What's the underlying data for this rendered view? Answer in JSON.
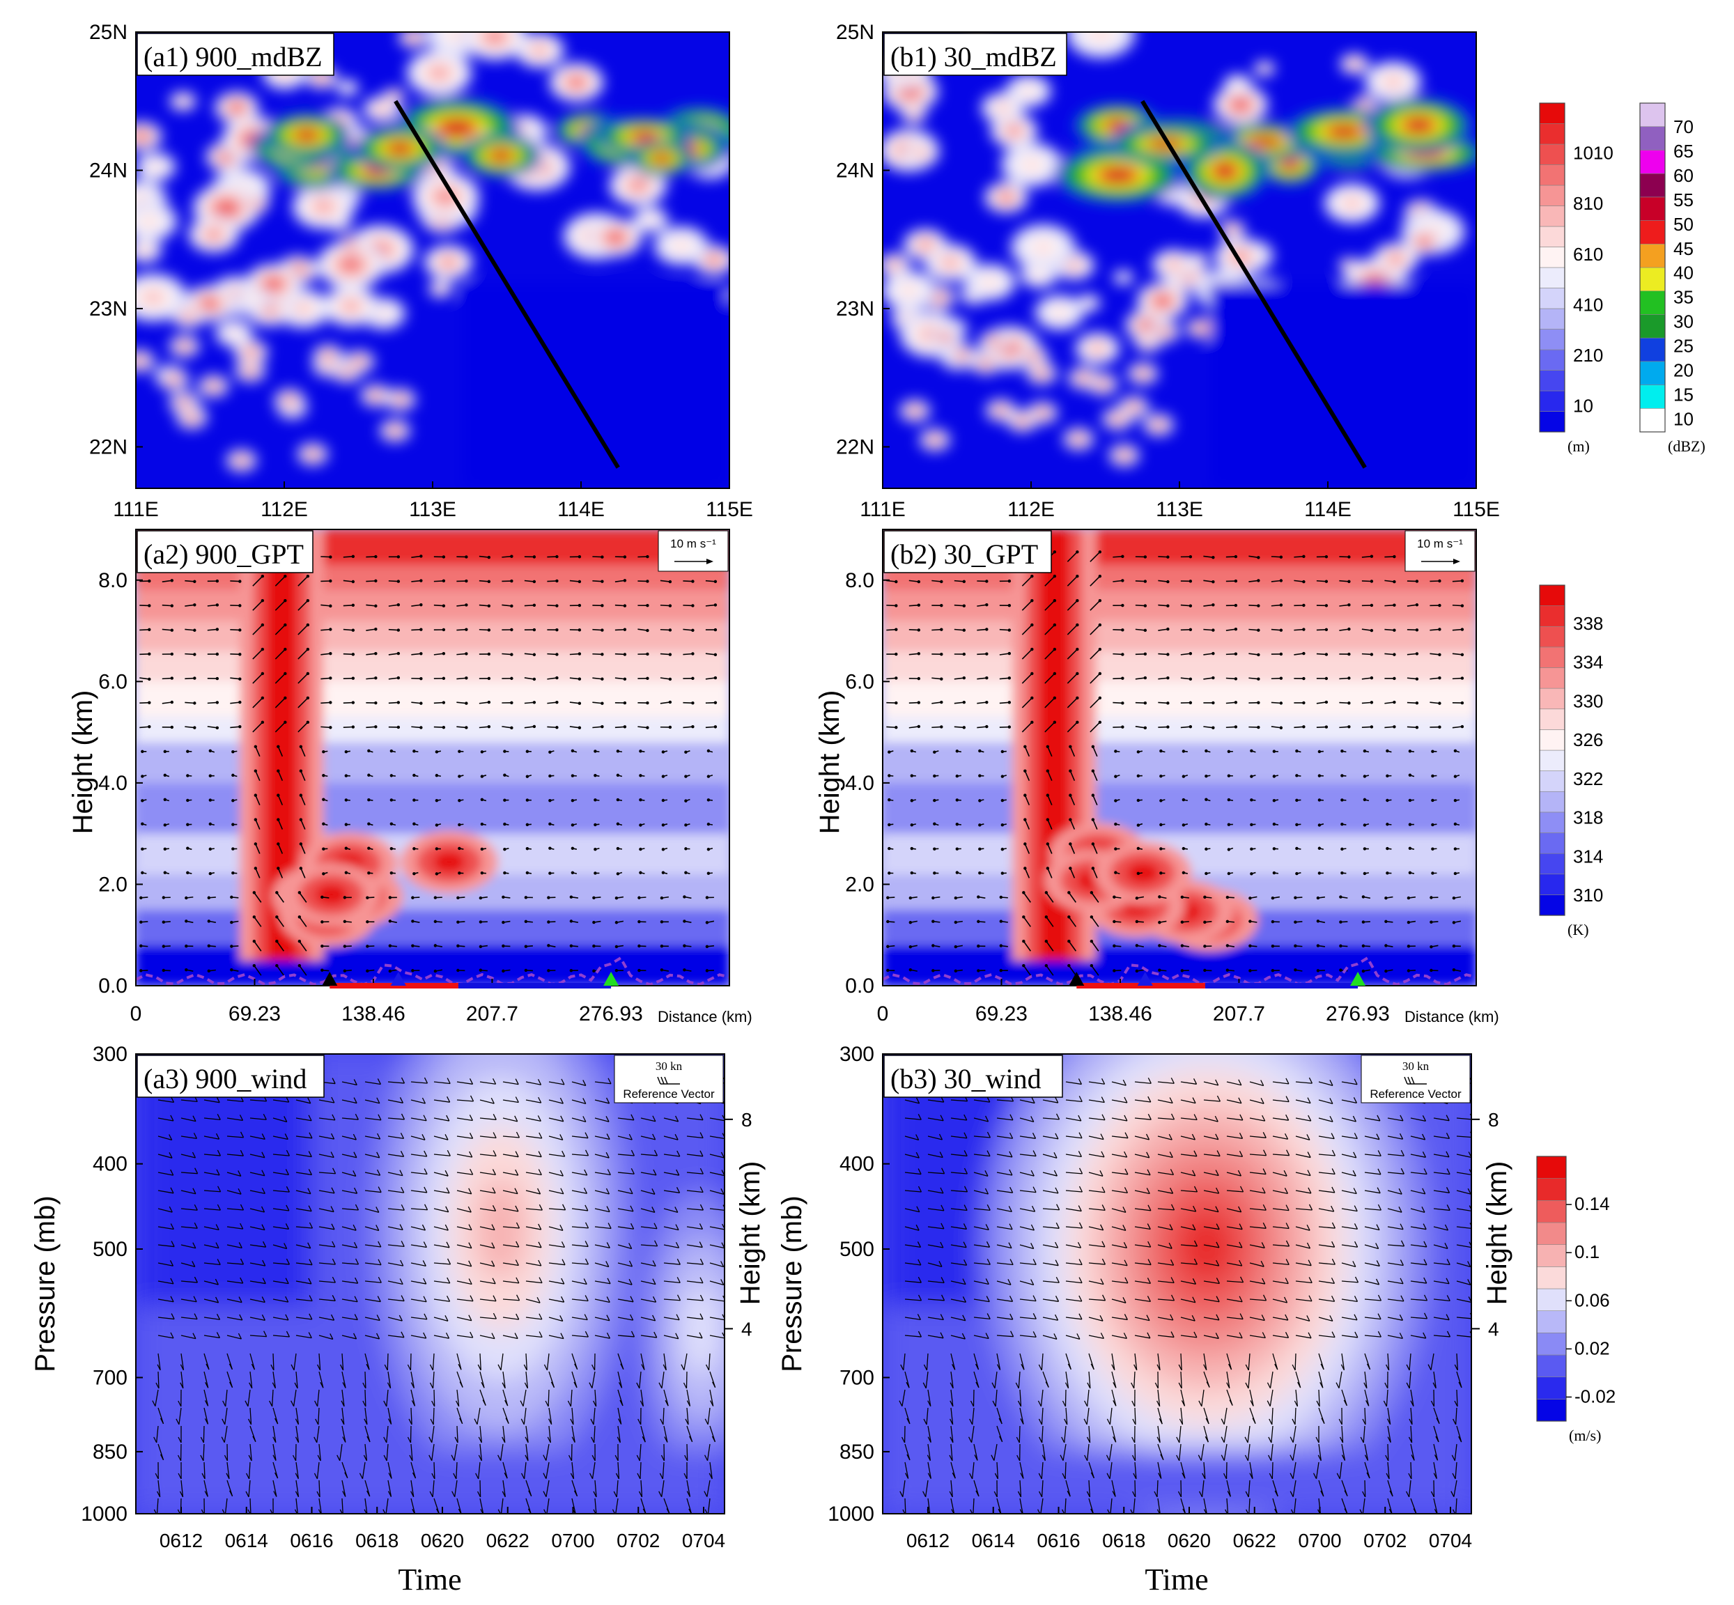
{
  "colors": {
    "terrain": [
      "#0505e6",
      "#2828ee",
      "#4646f0",
      "#6a6af2",
      "#8e8ef5",
      "#b4b4f7",
      "#d4d4fa",
      "#ececfc",
      "#fff3f3",
      "#fcd9d9",
      "#f9b7b7",
      "#f69595",
      "#f27373",
      "#ee5050",
      "#ea2e2e",
      "#e60a0a"
    ],
    "dbz": [
      "#ffffff",
      "#00eeee",
      "#00aaee",
      "#1040e0",
      "#1a9a2a",
      "#22c022",
      "#ecec22",
      "#f4a020",
      "#ee1c1c",
      "#c80028",
      "#8c0050",
      "#ee00ee",
      "#9060c0",
      "#ddc4ee"
    ],
    "theta": [
      "#0505e6",
      "#2828ee",
      "#4646f0",
      "#6a6af2",
      "#8e8ef5",
      "#b4b4f7",
      "#d4d4fa",
      "#ececfc",
      "#fff3f3",
      "#fcd9d9",
      "#f9b7b7",
      "#f69595",
      "#f27373",
      "#ee5050",
      "#ea2e2e",
      "#e60a0a"
    ],
    "w": [
      "#0505e6",
      "#2a2aee",
      "#5a5af2",
      "#8a8af5",
      "#b8b8f8",
      "#e0e0fb",
      "#fbdada",
      "#f7b2b2",
      "#f28a8a",
      "#ee5c5c",
      "#e82a2a",
      "#e60a0a"
    ],
    "crosssection_line": "#000000",
    "dashed_line": "#9040d0",
    "marker_black": "#000000",
    "marker_blue": "#1a1ae6",
    "marker_green": "#22dd22",
    "bar_red": "#ee1111",
    "bar_blue": "#1111dd"
  },
  "colorbars": {
    "terrain": {
      "labels": [
        "1010",
        "810",
        "610",
        "410",
        "210",
        "10"
      ],
      "unit": "(m)"
    },
    "dbz": {
      "labels": [
        "70",
        "65",
        "60",
        "55",
        "50",
        "45",
        "40",
        "35",
        "30",
        "25",
        "20",
        "15",
        "10"
      ],
      "unit": "(dBZ)"
    },
    "theta": {
      "labels": [
        "338",
        "334",
        "330",
        "326",
        "322",
        "318",
        "314",
        "310"
      ],
      "unit": "(K)"
    },
    "w": {
      "labels": [
        "0.14",
        "0.1",
        "0.06",
        "0.02",
        "-0.02"
      ],
      "unit": "(m/s)"
    }
  },
  "chart_data": [
    {
      "type": "heatmap",
      "title": "(a1) 900_mdBZ",
      "x_ticks": [
        "111E",
        "112E",
        "113E",
        "114E",
        "115E"
      ],
      "y_ticks": [
        "25N",
        "24N",
        "23N",
        "22N"
      ],
      "xlim": [
        111,
        115
      ],
      "ylim": [
        21.7,
        25
      ],
      "cross_section_line": {
        "start": [
          112.75,
          24.5
        ],
        "end": [
          114.25,
          21.85
        ]
      },
      "variable": "radar reflectivity over terrain height"
    },
    {
      "type": "heatmap",
      "title": "(b1) 30_mdBZ",
      "x_ticks": [
        "111E",
        "112E",
        "113E",
        "114E",
        "115E"
      ],
      "y_ticks": [
        "25N",
        "24N",
        "23N",
        "22N"
      ],
      "xlim": [
        111,
        115
      ],
      "ylim": [
        21.7,
        25
      ],
      "cross_section_line": {
        "start": [
          112.75,
          24.5
        ],
        "end": [
          114.25,
          21.85
        ]
      },
      "variable": "radar reflectivity over terrain height"
    },
    {
      "type": "heatmap",
      "title": "(a2) 900_GPT",
      "ylabel": "Height (km)",
      "xlabel": "Distance (km)",
      "x_ticks": [
        "0",
        "69.23",
        "138.46",
        "207.7",
        "276.93"
      ],
      "y_ticks": [
        "0.0",
        "2.0",
        "4.0",
        "6.0",
        "8.0"
      ],
      "xlim": [
        0,
        346
      ],
      "ylim": [
        0,
        9
      ],
      "reference_vector": "10 m s⁻¹",
      "markers": [
        {
          "x": 113,
          "color": "black"
        },
        {
          "x": 153,
          "color": "blue"
        },
        {
          "x": 277,
          "color": "green"
        }
      ],
      "bars": [
        {
          "from": 113,
          "to": 188,
          "color": "red"
        },
        {
          "from": 188,
          "to": 277,
          "color": "blue"
        }
      ],
      "variable": "potential temperature (K) with wind vectors"
    },
    {
      "type": "heatmap",
      "title": "(b2) 30_GPT",
      "ylabel": "Height (km)",
      "xlabel": "Distance (km)",
      "x_ticks": [
        "0",
        "69.23",
        "138.46",
        "207.7",
        "276.93"
      ],
      "y_ticks": [
        "0.0",
        "2.0",
        "4.0",
        "6.0",
        "8.0"
      ],
      "xlim": [
        0,
        346
      ],
      "ylim": [
        0,
        9
      ],
      "reference_vector": "10 m s⁻¹",
      "markers": [
        {
          "x": 113,
          "color": "black"
        },
        {
          "x": 153,
          "color": "blue"
        },
        {
          "x": 277,
          "color": "green"
        }
      ],
      "bars": [
        {
          "from": 113,
          "to": 188,
          "color": "red"
        },
        {
          "from": 188,
          "to": 277,
          "color": "blue"
        }
      ],
      "variable": "potential temperature (K) with wind vectors"
    },
    {
      "type": "heatmap",
      "title": "(a3) 900_wind",
      "ylabel": "Pressure (mb)",
      "y2label": "Height (km)",
      "xlabel": "Time",
      "x_ticks": [
        "0612",
        "0614",
        "0616",
        "0618",
        "0620",
        "0622",
        "0700",
        "0702",
        "0704"
      ],
      "y_ticks": [
        "300",
        "400",
        "500",
        "700",
        "850",
        "1000"
      ],
      "y2_ticks": [
        "8",
        "4"
      ],
      "reference_vector": {
        "speed": "30 kn",
        "label": "Reference Vector"
      },
      "variable": "vertical velocity (m/s) with wind barbs"
    },
    {
      "type": "heatmap",
      "title": "(b3) 30_wind",
      "ylabel": "Pressure (mb)",
      "y2label": "Height (km)",
      "xlabel": "Time",
      "x_ticks": [
        "0612",
        "0614",
        "0616",
        "0618",
        "0620",
        "0622",
        "0700",
        "0702",
        "0704"
      ],
      "y_ticks": [
        "300",
        "400",
        "500",
        "700",
        "850",
        "1000"
      ],
      "y2_ticks": [
        "8",
        "4"
      ],
      "reference_vector": {
        "speed": "30 kn",
        "label": "Reference Vector"
      },
      "variable": "vertical velocity (m/s) with wind barbs"
    }
  ]
}
